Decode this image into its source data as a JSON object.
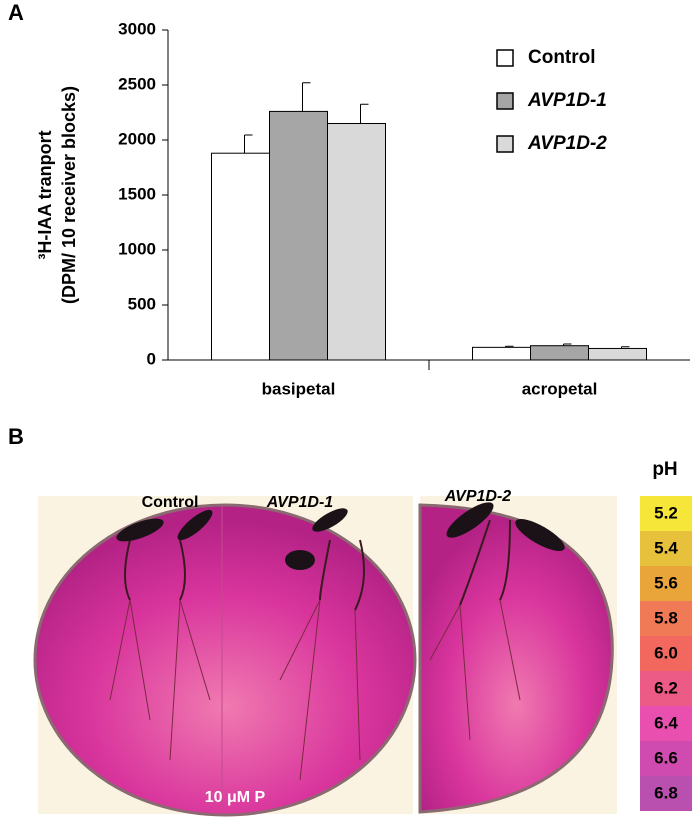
{
  "panel_labels": [
    "A",
    "B"
  ],
  "chart_data": {
    "type": "bar",
    "ylabel": [
      "³H-IAA tranport",
      "(DPM/ 10 receiver blocks)"
    ],
    "categories": [
      "basipetal",
      "acropetal"
    ],
    "series": [
      {
        "name": "Control",
        "color": "#ffffff",
        "values": [
          1880,
          115
        ],
        "errors": [
          165,
          10
        ]
      },
      {
        "name": "AVP1D-1",
        "color": "#a6a6a6",
        "values": [
          2260,
          130
        ],
        "errors": [
          260,
          15
        ]
      },
      {
        "name": "AVP1D-2",
        "color": "#d9d9d9",
        "values": [
          2150,
          105
        ],
        "errors": [
          175,
          15
        ]
      }
    ],
    "ylim": [
      0,
      3000
    ],
    "yticks": [
      0,
      500,
      1000,
      1500,
      2000,
      2500,
      3000
    ],
    "legend": "top-right"
  },
  "photo": {
    "labels": [
      "Control",
      "AVP1D-1",
      "AVP1D-2"
    ],
    "treatment": "10 μM P"
  },
  "ph_scale": {
    "title": "pH",
    "levels": [
      {
        "label": "5.2",
        "color": "#f6e63a"
      },
      {
        "label": "5.4",
        "color": "#e7c13c"
      },
      {
        "label": "5.6",
        "color": "#e9a43a"
      },
      {
        "label": "5.8",
        "color": "#f07a56"
      },
      {
        "label": "6.0",
        "color": "#f2685e"
      },
      {
        "label": "6.2",
        "color": "#ec5a86"
      },
      {
        "label": "6.4",
        "color": "#e84fae"
      },
      {
        "label": "6.6",
        "color": "#d04bb0"
      },
      {
        "label": "6.8",
        "color": "#b94fae"
      }
    ]
  }
}
